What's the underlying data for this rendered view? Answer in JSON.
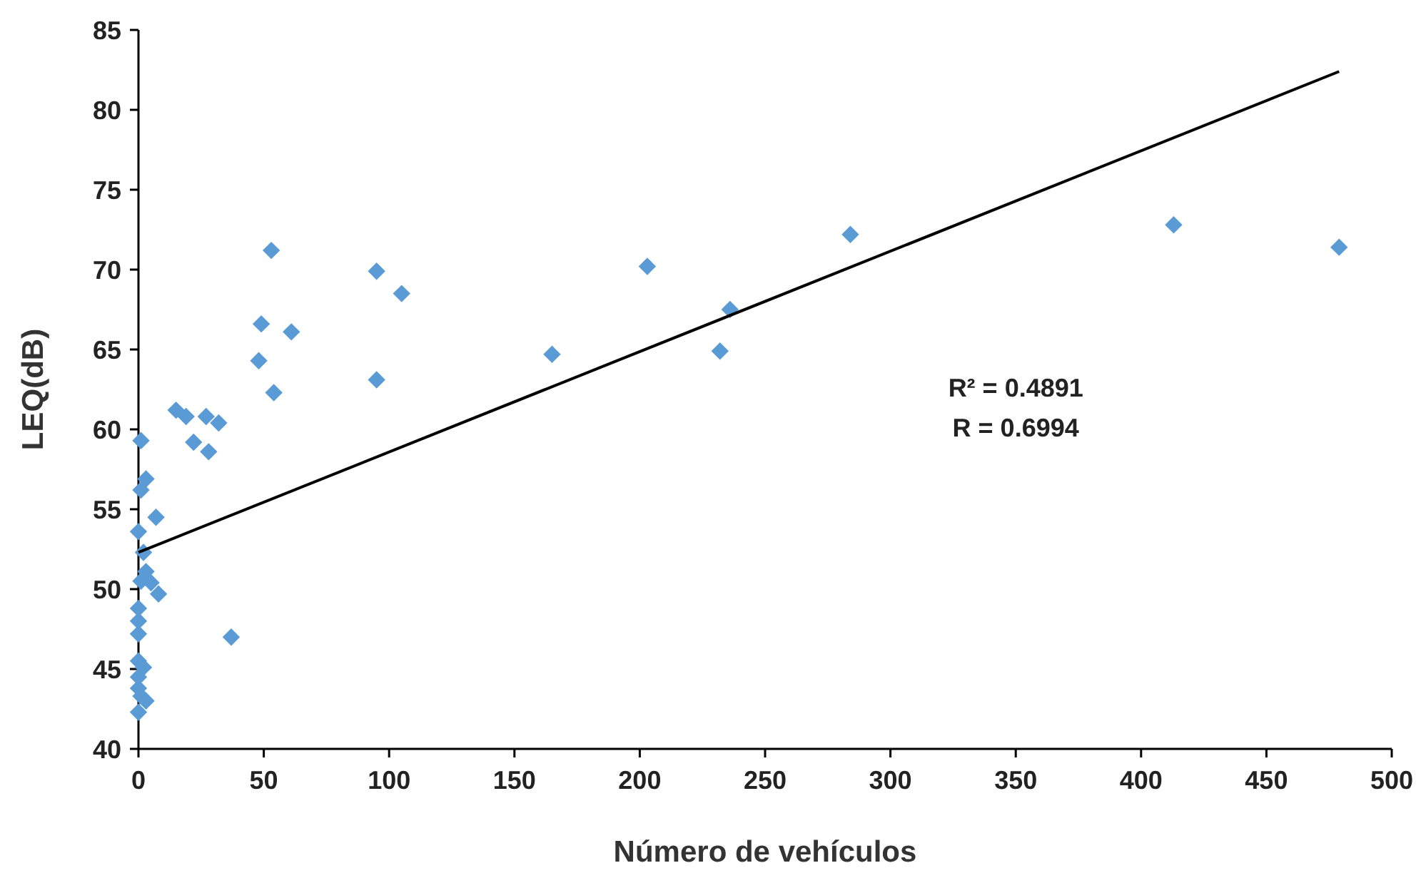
{
  "chart_data": {
    "type": "scatter",
    "xlabel": "Número de vehículos",
    "ylabel": "LEQ(dB)",
    "grid": false,
    "xlim": [
      0,
      500
    ],
    "xticks": [
      0,
      50,
      100,
      150,
      200,
      250,
      300,
      350,
      400,
      450,
      500
    ],
    "ylim": [
      40,
      85
    ],
    "yticks": [
      40,
      45,
      50,
      55,
      60,
      65,
      70,
      75,
      80,
      85
    ],
    "annotations": [
      "R² = 0.4891",
      "R = 0.6994"
    ],
    "series": [
      {
        "marker": "diamond",
        "color": "#5b9bd5",
        "x": [
          1,
          3,
          1,
          7,
          0,
          2,
          3,
          1,
          5,
          8,
          0,
          0,
          0,
          0,
          2,
          0,
          0,
          3,
          0,
          1,
          37,
          15,
          19,
          22,
          27,
          28,
          32,
          48,
          49,
          53,
          54,
          61,
          95,
          95,
          105,
          165,
          203,
          232,
          236,
          284,
          413,
          479
        ],
        "values": [
          59.3,
          56.9,
          56.2,
          54.5,
          53.6,
          52.3,
          51.1,
          50.5,
          50.4,
          49.7,
          48.8,
          48.0,
          47.2,
          45.5,
          45.1,
          44.5,
          43.8,
          43.0,
          42.3,
          43.3,
          47.0,
          61.2,
          60.8,
          59.2,
          60.8,
          58.6,
          60.4,
          64.3,
          66.6,
          71.2,
          62.3,
          66.1,
          63.1,
          69.9,
          68.5,
          64.7,
          70.2,
          64.9,
          67.5,
          72.2,
          72.8,
          71.4
        ]
      },
      {
        "type": "line",
        "marker": "none",
        "color": "#000000",
        "x": [
          0,
          479
        ],
        "values": [
          52.3,
          82.4
        ]
      }
    ]
  }
}
